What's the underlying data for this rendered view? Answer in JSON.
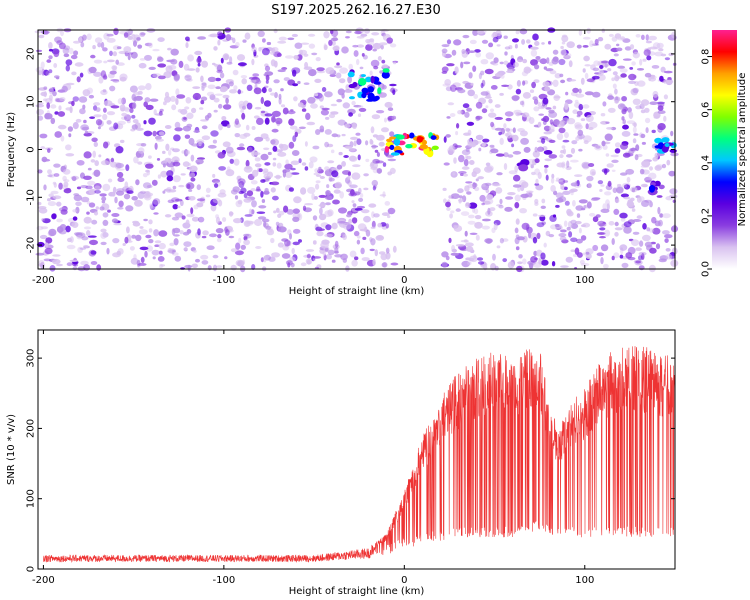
{
  "title": "S197.2025.262.16.27.E30",
  "chart_data": [
    {
      "type": "heatmap",
      "xlabel": "Height of straight line (km)",
      "ylabel": "Frequency (Hz)",
      "xlim": [
        -203,
        150
      ],
      "ylim": [
        -25,
        25
      ],
      "xticks": [
        -200,
        -100,
        0,
        100
      ],
      "yticks": [
        -20,
        -10,
        0,
        10,
        20
      ],
      "colorbar": {
        "label": "Normalized spectral amplitude",
        "range": [
          0,
          0.9
        ],
        "ticks": [
          0.0,
          0.2,
          0.4,
          0.6,
          0.8
        ],
        "colormap": [
          "#ffffff",
          "#d9c2f0",
          "#8a3de0",
          "#5a00e0",
          "#0000ff",
          "#00c8ff",
          "#00ff80",
          "#80ff00",
          "#ffff00",
          "#ffa000",
          "#ff0000",
          "#ff2090"
        ]
      },
      "blank_gap_km": [
        -5,
        22
      ],
      "features": [
        {
          "x_range": [
            -30,
            -10
          ],
          "freq_range": [
            10,
            17
          ],
          "peak_amplitude": 0.5
        },
        {
          "x_range": [
            -10,
            22
          ],
          "freq_range": [
            -1,
            3
          ],
          "peak_amplitude": 0.9
        },
        {
          "x_range": [
            140,
            150
          ],
          "freq_range": [
            -1,
            2
          ],
          "peak_amplitude": 0.5
        },
        {
          "x_range": [
            137,
            141
          ],
          "freq_range": [
            -9,
            -7
          ],
          "peak_amplitude": 0.4
        },
        {
          "x_range": [
            64,
            67
          ],
          "freq_range": [
            -4,
            -2
          ],
          "peak_amplitude": 0.3
        }
      ],
      "background_amplitude": 0.15
    },
    {
      "type": "line",
      "xlabel": "Height of straight line (km)",
      "ylabel": "SNR (10 * v/v)",
      "xlim": [
        -203,
        150
      ],
      "ylim": [
        0,
        340
      ],
      "xticks": [
        -200,
        -100,
        0,
        100
      ],
      "yticks": [
        0,
        100,
        200,
        300
      ],
      "color": "#ee3333",
      "x": [
        -200,
        -150,
        -100,
        -50,
        -20,
        -10,
        0,
        5,
        10,
        15,
        20,
        25,
        30,
        40,
        50,
        60,
        70,
        75,
        80,
        85,
        90,
        100,
        110,
        120,
        130,
        140,
        150
      ],
      "y_upper": [
        20,
        20,
        20,
        20,
        30,
        50,
        110,
        150,
        190,
        220,
        250,
        270,
        280,
        300,
        310,
        310,
        315,
        320,
        240,
        200,
        230,
        260,
        300,
        320,
        320,
        310,
        300
      ],
      "y_lower": [
        10,
        10,
        10,
        10,
        15,
        20,
        30,
        30,
        40,
        40,
        40,
        40,
        45,
        45,
        45,
        45,
        50,
        55,
        50,
        45,
        45,
        45,
        45,
        45,
        45,
        45,
        45
      ]
    }
  ]
}
